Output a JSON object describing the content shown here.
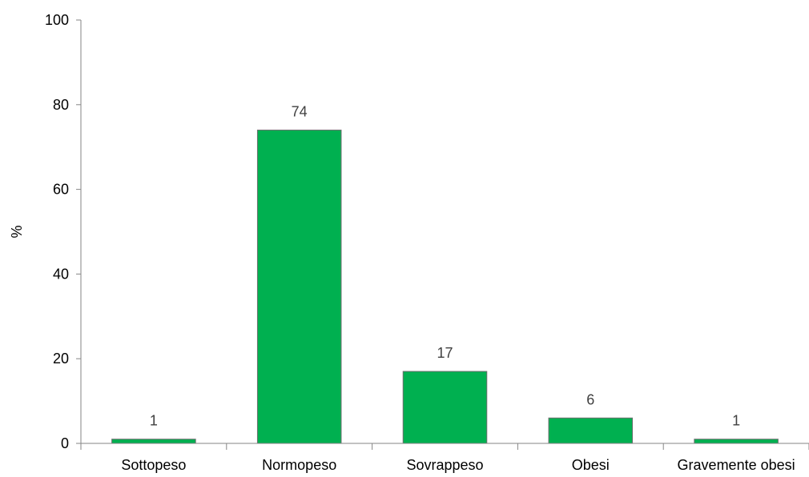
{
  "chart_data": {
    "type": "bar",
    "categories": [
      "Sottopeso",
      "Normopeso",
      "Sovrappeso",
      "Obesi",
      "Gravemente obesi"
    ],
    "values": [
      1,
      74,
      17,
      6,
      1
    ],
    "data_labels": [
      "1",
      "74",
      "17",
      "6",
      "1"
    ],
    "ylabel": "%",
    "ylim": [
      0,
      100
    ],
    "yticks": [
      0,
      20,
      40,
      60,
      80,
      100
    ],
    "ytick_labels": [
      "0",
      "20",
      "40",
      "60",
      "80",
      "100"
    ],
    "grid": false,
    "bar_color": "#00b050",
    "bar_edge_color": "#6e6e6e"
  }
}
